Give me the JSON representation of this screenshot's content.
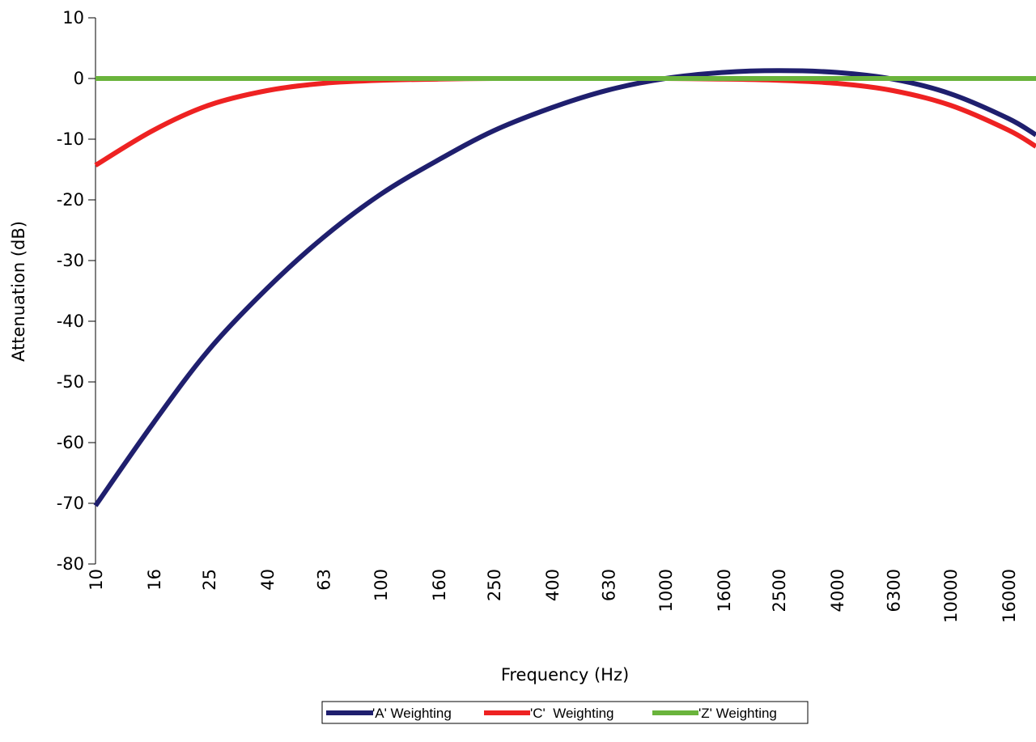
{
  "chart_data": {
    "type": "line",
    "xlabel": "Frequency (Hz)",
    "ylabel": "Attenuation (dB)",
    "ylim": [
      -80,
      10
    ],
    "yticks": [
      10,
      0,
      -10,
      -20,
      -30,
      -40,
      -50,
      -60,
      -70,
      -80
    ],
    "x_scale": "log",
    "x_tick_labels": [
      "10",
      "16",
      "25",
      "40",
      "63",
      "100",
      "160",
      "250",
      "400",
      "630",
      "1000",
      "1600",
      "2500",
      "4000",
      "6300",
      "10000",
      "16000"
    ],
    "grid": false,
    "legend_position": "bottom",
    "series": [
      {
        "name": "'A' Weighting",
        "color": "#1f1f6e",
        "x": [
          10,
          16,
          25,
          40,
          63,
          100,
          160,
          250,
          400,
          630,
          1000,
          1600,
          2500,
          4000,
          6300,
          10000,
          16000,
          20000
        ],
        "values": [
          -70.4,
          -56.7,
          -44.7,
          -34.6,
          -26.2,
          -19.1,
          -13.4,
          -8.6,
          -4.8,
          -1.9,
          0.0,
          1.0,
          1.3,
          1.0,
          -0.1,
          -2.5,
          -6.6,
          -9.3
        ]
      },
      {
        "name": "'C'  Weighting",
        "color": "#ee2222",
        "x": [
          10,
          16,
          25,
          40,
          63,
          100,
          160,
          250,
          400,
          630,
          1000,
          1600,
          2500,
          4000,
          6300,
          10000,
          16000,
          20000
        ],
        "values": [
          -14.3,
          -8.5,
          -4.4,
          -2.0,
          -0.8,
          -0.3,
          -0.1,
          0.0,
          0.0,
          0.0,
          0.0,
          -0.1,
          -0.3,
          -0.8,
          -2.0,
          -4.4,
          -8.5,
          -11.2
        ]
      },
      {
        "name": "'Z' Weighting",
        "color": "#6ab43c",
        "x": [
          10,
          20000
        ],
        "values": [
          0,
          0
        ]
      }
    ]
  }
}
